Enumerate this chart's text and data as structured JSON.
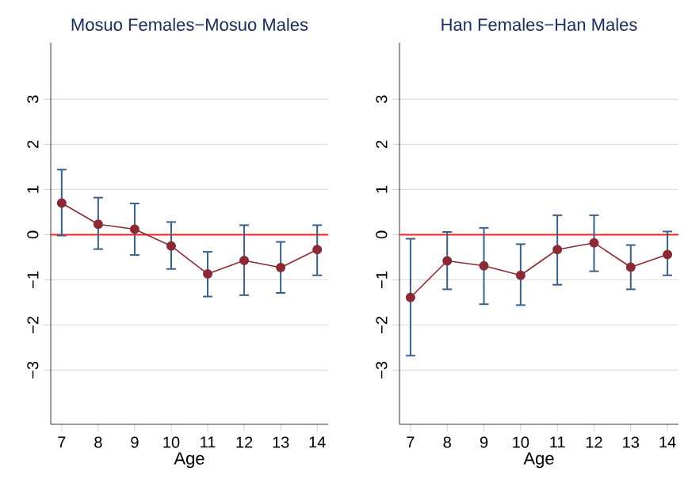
{
  "chart_data": [
    {
      "type": "line",
      "title": "Mosuo Females−Mosuo Males",
      "xlabel": "Age",
      "x": [
        7,
        8,
        9,
        10,
        11,
        12,
        13,
        14
      ],
      "values": [
        0.7,
        0.23,
        0.12,
        -0.25,
        -0.87,
        -0.57,
        -0.73,
        -0.33
      ],
      "errors": [
        [
          -0.02,
          1.44
        ],
        [
          -0.32,
          0.82
        ],
        [
          -0.45,
          0.69
        ],
        [
          -0.76,
          0.28
        ],
        [
          -1.37,
          -0.38
        ],
        [
          -1.34,
          0.21
        ],
        [
          -1.29,
          -0.16
        ],
        [
          -0.9,
          0.21
        ]
      ],
      "color": "#8b2a35",
      "marker": "circle",
      "grid": "y",
      "xlim": [
        6.7,
        14.3
      ],
      "ylim": [
        -4.2,
        4.25
      ],
      "xticks": [
        7,
        8,
        9,
        10,
        11,
        12,
        13,
        14
      ],
      "yticks": [
        {
          "value": -3,
          "label": "−3"
        },
        {
          "value": -2,
          "label": "−2"
        },
        {
          "value": -1,
          "label": "−1"
        },
        0,
        1,
        2,
        3
      ],
      "ref_lines": [
        {
          "axis": "y",
          "value": 0,
          "color": "#ff2020"
        }
      ]
    },
    {
      "type": "line",
      "title": "Han Females−Han Males",
      "xlabel": "Age",
      "x": [
        7,
        8,
        9,
        10,
        11,
        12,
        13,
        14
      ],
      "values": [
        -1.39,
        -0.58,
        -0.69,
        -0.9,
        -0.33,
        -0.18,
        -0.72,
        -0.44
      ],
      "errors": [
        [
          -2.68,
          -0.09
        ],
        [
          -1.21,
          0.06
        ],
        [
          -1.54,
          0.15
        ],
        [
          -1.56,
          -0.21
        ],
        [
          -1.11,
          0.43
        ],
        [
          -0.81,
          0.43
        ],
        [
          -1.21,
          -0.23
        ],
        [
          -0.9,
          0.07
        ]
      ],
      "color": "#8b2a35",
      "marker": "circle",
      "grid": "y",
      "xlim": [
        6.7,
        14.3
      ],
      "ylim": [
        -4.2,
        4.25
      ],
      "xticks": [
        7,
        8,
        9,
        10,
        11,
        12,
        13,
        14
      ],
      "yticks": [
        {
          "value": -3,
          "label": "−3"
        },
        {
          "value": -2,
          "label": "−2"
        },
        {
          "value": -1,
          "label": "−1"
        },
        0,
        1,
        2,
        3
      ],
      "ref_lines": [
        {
          "axis": "y",
          "value": 0,
          "color": "#ff2020"
        }
      ]
    }
  ]
}
